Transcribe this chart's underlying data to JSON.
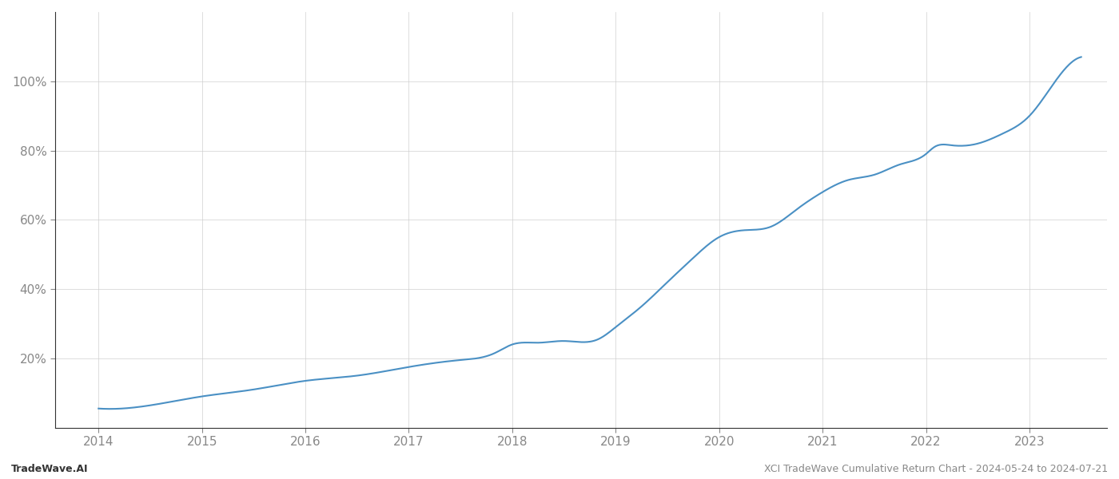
{
  "title": "XCI TradeWave Cumulative Return Chart - 2024-05-24 to 2024-07-21",
  "footer_left": "TradeWave.AI",
  "footer_right": "XCI TradeWave Cumulative Return Chart - 2024-05-24 to 2024-07-21",
  "line_color": "#4a90c4",
  "background_color": "#ffffff",
  "grid_color": "#cccccc",
  "x_years": [
    2014,
    2015,
    2016,
    2017,
    2018,
    2019,
    2020,
    2021,
    2022,
    2023
  ],
  "y_key_points_x": [
    2014.0,
    2014.4,
    2015.0,
    2015.5,
    2016.0,
    2016.5,
    2017.0,
    2017.5,
    2017.83,
    2018.0,
    2018.25,
    2018.5,
    2018.83,
    2019.0,
    2019.25,
    2019.5,
    2019.75,
    2020.0,
    2020.25,
    2020.5,
    2020.75,
    2021.0,
    2021.25,
    2021.5,
    2021.75,
    2022.0,
    2022.08,
    2022.25,
    2022.5,
    2022.75,
    2023.0,
    2023.25,
    2023.5
  ],
  "y_key_points_y": [
    5.5,
    6.0,
    9.0,
    11.0,
    13.5,
    15.0,
    17.5,
    19.5,
    21.5,
    24.0,
    24.5,
    25.0,
    25.5,
    29.0,
    35.0,
    42.0,
    49.0,
    55.0,
    57.0,
    58.0,
    63.0,
    68.0,
    71.5,
    73.0,
    76.0,
    79.0,
    81.0,
    81.5,
    82.0,
    85.0,
    90.0,
    100.0,
    107.0
  ],
  "ylim": [
    0,
    120
  ],
  "yticks": [
    20,
    40,
    60,
    80,
    100
  ],
  "ytick_labels": [
    "20%",
    "40%",
    "60%",
    "80%",
    "100%"
  ],
  "xlim": [
    2013.58,
    2023.75
  ],
  "line_width": 1.5,
  "tick_color": "#888888",
  "axis_color": "#333333",
  "tick_fontsize": 11,
  "footer_fontsize": 9,
  "spine_color": "#333333"
}
